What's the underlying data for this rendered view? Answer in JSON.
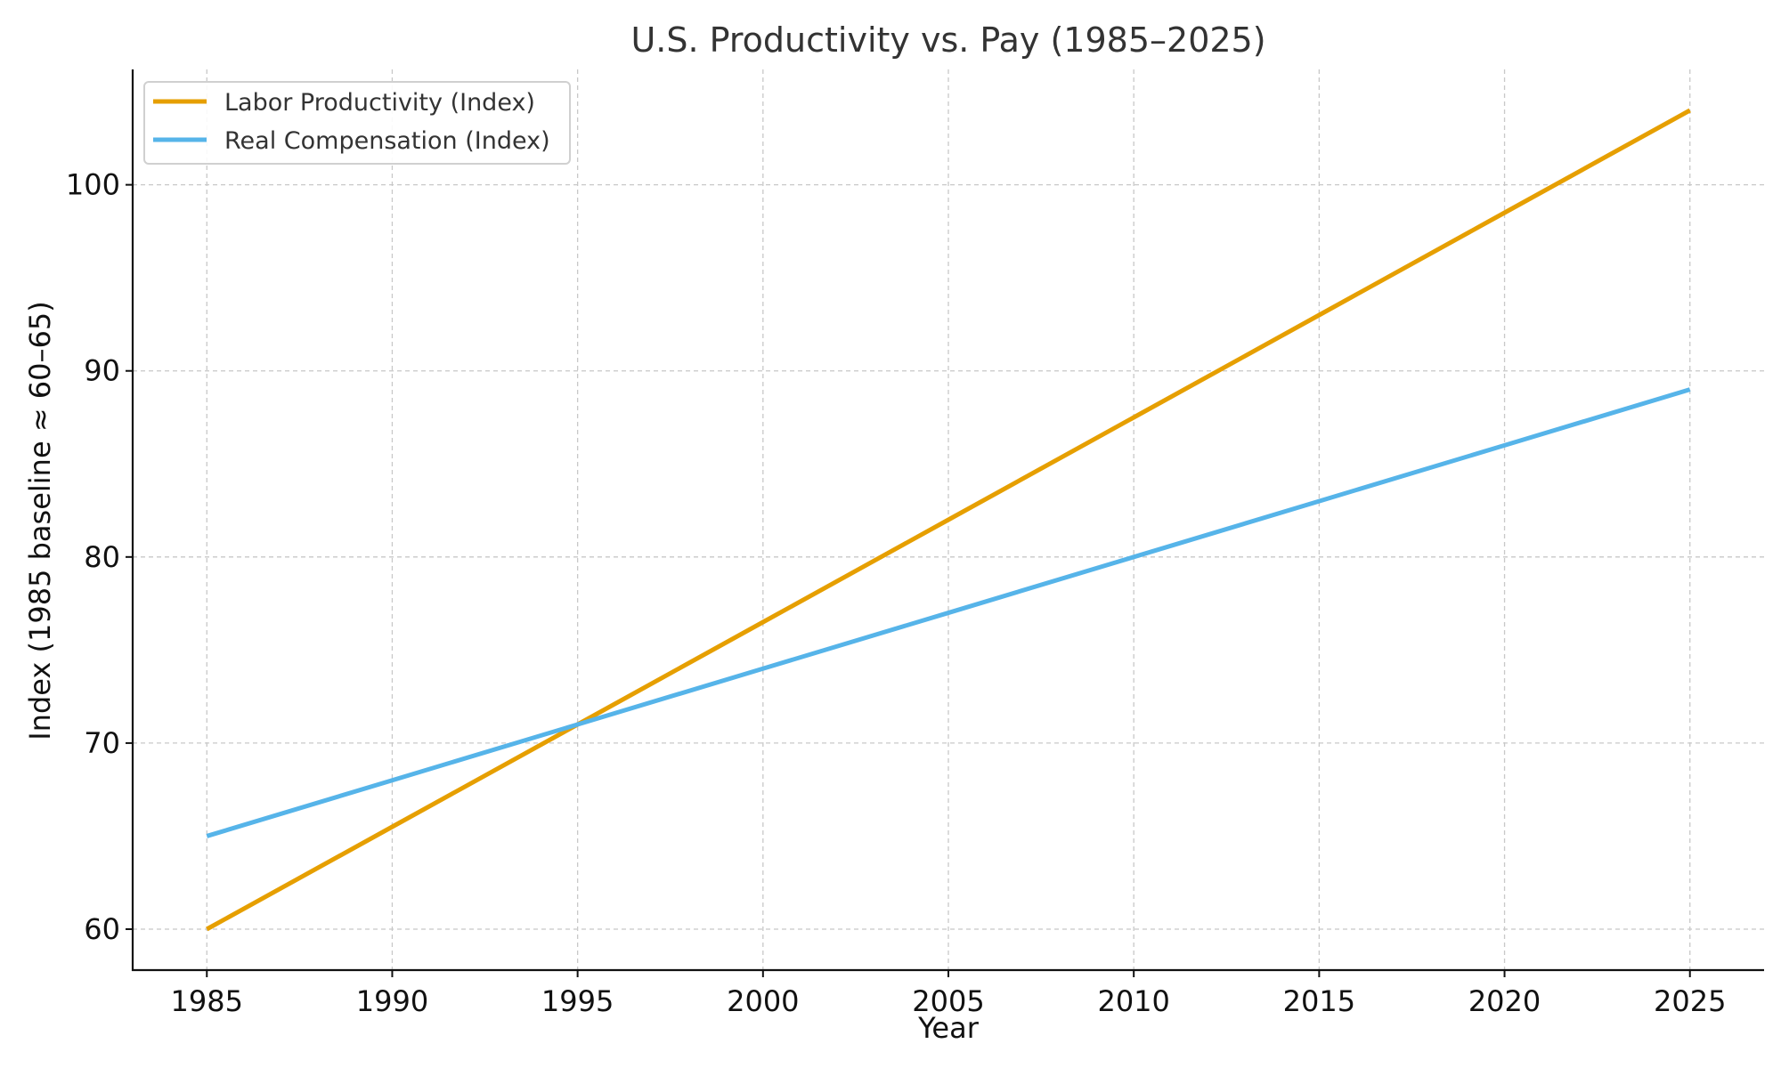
{
  "chart_data": {
    "type": "line",
    "title": "U.S. Productivity vs. Pay (1985–2025)",
    "xlabel": "Year",
    "ylabel": "Index (1985 baseline ≈ 60–65)",
    "xlim": [
      1983,
      2027
    ],
    "ylim": [
      57.8,
      106.2
    ],
    "x_ticks": [
      1985,
      1990,
      1995,
      2000,
      2005,
      2010,
      2015,
      2020,
      2025
    ],
    "x_tick_labels": [
      "1985",
      "1990",
      "1995",
      "2000",
      "2005",
      "2010",
      "2015",
      "2020",
      "2025"
    ],
    "y_ticks": [
      60,
      70,
      80,
      90,
      100
    ],
    "y_tick_labels": [
      "60",
      "70",
      "80",
      "90",
      "100"
    ],
    "grid": true,
    "legend_position": "top-left",
    "series": [
      {
        "name": "Labor Productivity (Index)",
        "color": "#E69F00",
        "x": [
          1985,
          1990,
          1995,
          2000,
          2005,
          2010,
          2015,
          2020,
          2025
        ],
        "values": [
          60,
          65.5,
          71,
          76.5,
          82,
          87.5,
          93,
          98.5,
          104
        ]
      },
      {
        "name": "Real Compensation (Index)",
        "color": "#56B4E9",
        "x": [
          1985,
          1990,
          1995,
          2000,
          2005,
          2010,
          2015,
          2020,
          2025
        ],
        "values": [
          65,
          68,
          71,
          74,
          77,
          80,
          83,
          86,
          89
        ]
      }
    ]
  }
}
